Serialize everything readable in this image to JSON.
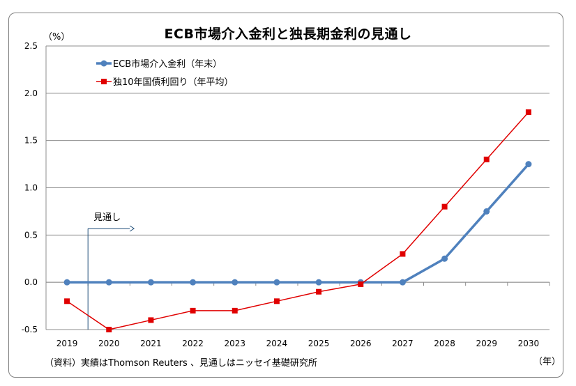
{
  "chart_data": {
    "type": "line",
    "title": "ECB市場介入金利と独長期金利の見通し",
    "y_unit": "（%）",
    "x_unit": "（年）",
    "categories": [
      "2019",
      "2020",
      "2021",
      "2022",
      "2023",
      "2024",
      "2025",
      "2026",
      "2027",
      "2028",
      "2029",
      "2030"
    ],
    "ylim": [
      -0.5,
      2.5
    ],
    "yticks": [
      -0.5,
      0.0,
      0.5,
      1.0,
      1.5,
      2.0,
      2.5
    ],
    "grid": true,
    "legend_position": "top-left",
    "series": [
      {
        "name": "ECB市場介入金利（年末）",
        "color": "#4F81BD",
        "marker": "circle",
        "values": [
          0,
          0,
          0,
          0,
          0,
          0,
          0,
          0,
          0,
          0.25,
          0.75,
          1.25
        ]
      },
      {
        "name": "独10年国債利回り（年平均）",
        "color": "#E00000",
        "marker": "square",
        "values": [
          -0.2,
          -0.5,
          -0.4,
          -0.3,
          -0.3,
          -0.2,
          -0.1,
          -0.02,
          0.3,
          0.8,
          1.3,
          1.8
        ]
      }
    ],
    "annotation": {
      "label": "見通し",
      "after_category": "2019"
    },
    "source_note": "（資料）実績はThomson Reuters 、見通しはニッセイ基礎研究所"
  }
}
